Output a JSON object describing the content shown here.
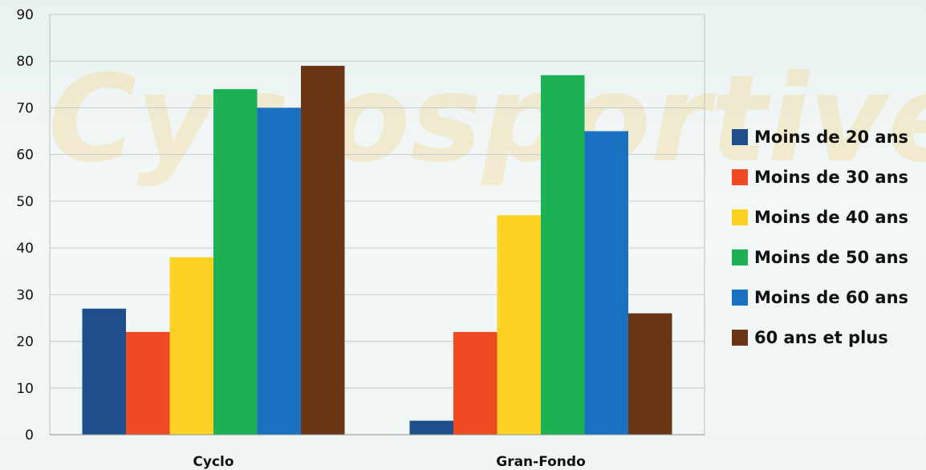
{
  "chart_data": {
    "type": "bar",
    "categories": [
      "Cyclo",
      "Gran-Fondo"
    ],
    "series": [
      {
        "name": "Moins de 20 ans",
        "color": "#1f4e8c",
        "values": [
          27,
          3
        ]
      },
      {
        "name": "Moins de 30 ans",
        "color": "#f04a23",
        "values": [
          22,
          22
        ]
      },
      {
        "name": "Moins de 40 ans",
        "color": "#fdd224",
        "values": [
          38,
          47
        ]
      },
      {
        "name": "Moins de 50 ans",
        "color": "#1db155",
        "values": [
          74,
          77
        ]
      },
      {
        "name": "Moins de 60 ans",
        "color": "#1a70c1",
        "values": [
          70,
          65
        ]
      },
      {
        "name": "60 ans et plus",
        "color": "#6b3616",
        "values": [
          79,
          26
        ]
      }
    ],
    "yticks": [
      "0",
      "10",
      "20",
      "30",
      "40",
      "50",
      "60",
      "70",
      "80",
      "90"
    ],
    "ylim": [
      0,
      90
    ],
    "grid": true,
    "legend_position": "right",
    "watermark_text": "Cyclosportive"
  }
}
